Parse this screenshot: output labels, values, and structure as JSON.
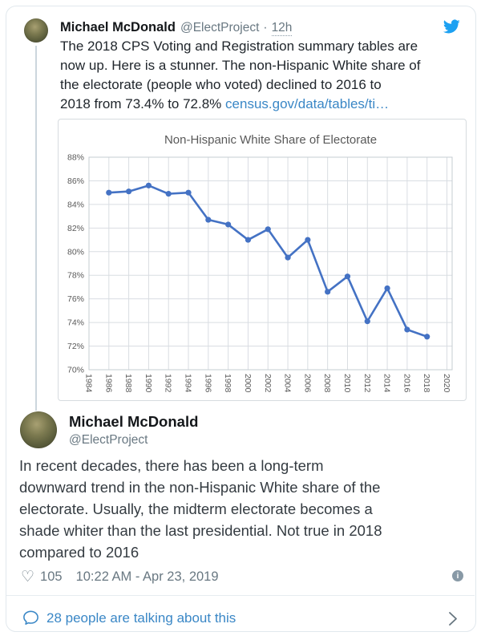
{
  "tweet1": {
    "author": "Michael McDonald",
    "handle": "@ElectProject",
    "separator": "·",
    "time": "12h",
    "lines": [
      "The 2018 CPS Voting and Registration summary tables are",
      "now up. Here is a stunner. The non-Hispanic White share of",
      "the electorate (people who voted) declined to 2016 to",
      "2018 from 73.4% to 72.8%"
    ],
    "link_text": "census.gov/data/tables/ti…"
  },
  "profile": {
    "author": "Michael McDonald",
    "handle": "@ElectProject"
  },
  "tweet2": {
    "lines": [
      "In recent decades, there has been a long-term",
      "downward trend in the non-Hispanic White share of the",
      "electorate. Usually, the midterm electorate becomes a",
      "shade whiter than the last presidential. Not true in 2018",
      "compared to 2016"
    ]
  },
  "meta": {
    "likes": "105",
    "timestamp": "10:22 AM - Apr 23, 2019",
    "info_glyph": "i"
  },
  "footer": {
    "cta": "28 people are talking about this"
  },
  "icons": {
    "heart": "♡",
    "twitter_bird": "twitter-bird-logo",
    "reply_bubble": "speech-bubble-outline",
    "chevron_right": "›"
  },
  "colors": {
    "accent_blue": "#1da1f2",
    "link_blue": "#3a87c6",
    "chart_line": "#4472c4",
    "gray_text": "#697882",
    "chart_text": "#595959",
    "grid": "#d9dde2"
  },
  "chart_data": {
    "type": "line",
    "title": "Non-Hispanic White Share of Electorate",
    "x": [
      1986,
      1988,
      1990,
      1992,
      1994,
      1996,
      1998,
      2000,
      2002,
      2004,
      2006,
      2008,
      2010,
      2012,
      2014,
      2016,
      2018
    ],
    "values": [
      85.0,
      85.1,
      85.6,
      84.9,
      85.0,
      82.7,
      82.3,
      81.0,
      81.9,
      79.5,
      81.0,
      76.6,
      77.9,
      74.1,
      76.9,
      73.4,
      72.8
    ],
    "xlabel": "",
    "ylabel": "",
    "xlim": [
      1984,
      2020
    ],
    "ylim": [
      70,
      88
    ],
    "xtick_step": 2,
    "ytick_step": 2,
    "ytick_suffix": "%",
    "xtick_rotation": 90,
    "grid": true,
    "legend_position": "none",
    "marker": "circle"
  }
}
